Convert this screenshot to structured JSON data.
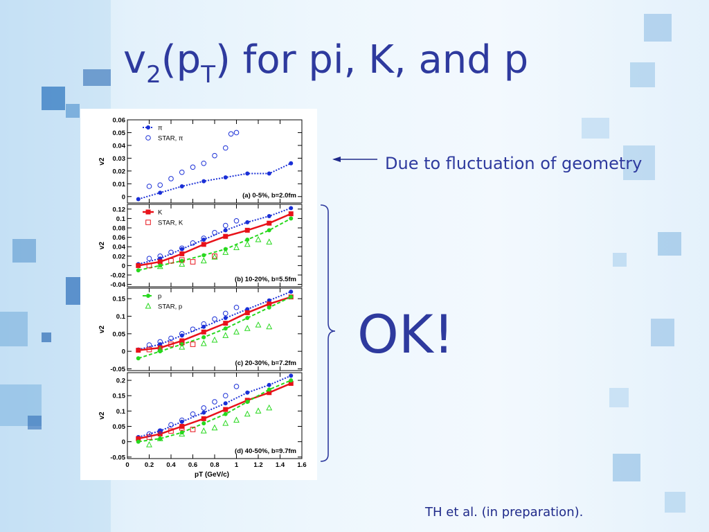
{
  "slide": {
    "title_main": "v",
    "title_sub1": "2",
    "title_mid": "(p",
    "title_sub2": "T",
    "title_end": ") for pi, K, and p",
    "annotation": "Due to fluctuation of geometry",
    "ok_text": "OK!",
    "citation": "TH et al. (in preparation)."
  },
  "colors": {
    "title": "#2e3a9e",
    "pion": "#1a2fd6",
    "kaon": "#e8121a",
    "proton": "#27d81d"
  },
  "chart_data": [
    {
      "type": "scatter",
      "ylabel": "v2",
      "xlim": [
        0,
        1.6
      ],
      "ylim": [
        -0.005,
        0.06
      ],
      "yticks": [
        0,
        0.01,
        0.02,
        0.03,
        0.04,
        0.05,
        0.06
      ],
      "ytick_labels": [
        "0",
        "0.01",
        "0.02",
        "0.03",
        "0.04",
        "0.05",
        "0.06"
      ],
      "annotation": "(a) 0-5%, b=2.0fm",
      "legend": [
        {
          "label": "π",
          "marker": "filled-circle",
          "color": "#1a2fd6"
        },
        {
          "label": "STAR, π",
          "marker": "open-circle",
          "color": "#1a2fd6"
        }
      ],
      "series": [
        {
          "name": "π",
          "style": "dotted-line-filled-circle",
          "color": "#1a2fd6",
          "x": [
            0.1,
            0.3,
            0.5,
            0.7,
            0.9,
            1.1,
            1.3,
            1.5
          ],
          "y": [
            -0.002,
            0.003,
            0.008,
            0.012,
            0.015,
            0.018,
            0.018,
            0.026
          ]
        },
        {
          "name": "STAR, π",
          "style": "open-circle",
          "color": "#1a2fd6",
          "x": [
            0.2,
            0.3,
            0.4,
            0.5,
            0.6,
            0.7,
            0.8,
            0.9,
            0.95,
            1.0
          ],
          "y": [
            0.008,
            0.009,
            0.014,
            0.019,
            0.023,
            0.026,
            0.032,
            0.038,
            0.049,
            0.05
          ]
        }
      ]
    },
    {
      "type": "scatter",
      "ylabel": "v2",
      "xlim": [
        0,
        1.6
      ],
      "ylim": [
        -0.045,
        0.13
      ],
      "yticks": [
        -0.04,
        -0.02,
        0,
        0.02,
        0.04,
        0.06,
        0.08,
        0.1,
        0.12
      ],
      "ytick_labels": [
        "-0.04",
        "-0.02",
        "0",
        "0.02",
        "0.04",
        "0.06",
        "0.08",
        "0.1",
        "0.12"
      ],
      "annotation": "(b) 10-20%, b=5.5fm",
      "legend": [
        {
          "label": "K",
          "marker": "filled-square",
          "color": "#e8121a"
        },
        {
          "label": "STAR, K",
          "marker": "open-square",
          "color": "#e8121a"
        }
      ],
      "series": [
        {
          "name": "π",
          "style": "dotted-line-filled-circle",
          "color": "#1a2fd6",
          "x": [
            0.1,
            0.3,
            0.5,
            0.7,
            0.9,
            1.1,
            1.3,
            1.5
          ],
          "y": [
            0.003,
            0.015,
            0.035,
            0.055,
            0.075,
            0.092,
            0.105,
            0.122
          ]
        },
        {
          "name": "K",
          "style": "solid-line-filled-square",
          "color": "#e8121a",
          "x": [
            0.1,
            0.3,
            0.5,
            0.7,
            0.9,
            1.1,
            1.3,
            1.5
          ],
          "y": [
            0.0,
            0.008,
            0.025,
            0.045,
            0.062,
            0.075,
            0.09,
            0.11
          ]
        },
        {
          "name": "p",
          "style": "dashed-line-filled-circle",
          "color": "#27d81d",
          "x": [
            0.1,
            0.3,
            0.5,
            0.7,
            0.9,
            1.1,
            1.3,
            1.5
          ],
          "y": [
            -0.01,
            0.0,
            0.01,
            0.022,
            0.035,
            0.055,
            0.075,
            0.1
          ]
        },
        {
          "name": "STAR, π",
          "style": "open-circle",
          "color": "#1a2fd6",
          "x": [
            0.2,
            0.3,
            0.4,
            0.5,
            0.6,
            0.7,
            0.8,
            0.9,
            1.0
          ],
          "y": [
            0.015,
            0.02,
            0.028,
            0.037,
            0.048,
            0.058,
            0.07,
            0.085,
            0.095
          ]
        },
        {
          "name": "STAR, K",
          "style": "open-square",
          "color": "#e8121a",
          "x": [
            0.2,
            0.4,
            0.5,
            0.6,
            0.8
          ],
          "y": [
            0.0,
            0.01,
            0.012,
            0.008,
            0.02
          ]
        },
        {
          "name": "STAR, p",
          "style": "open-triangle",
          "color": "#27d81d",
          "x": [
            0.3,
            0.5,
            0.7,
            0.8,
            0.9,
            1.0,
            1.1,
            1.2,
            1.3
          ],
          "y": [
            -0.002,
            0.003,
            0.01,
            0.018,
            0.028,
            0.038,
            0.045,
            0.055,
            0.05
          ]
        }
      ]
    },
    {
      "type": "scatter",
      "ylabel": "v2",
      "xlim": [
        0,
        1.6
      ],
      "ylim": [
        -0.055,
        0.18
      ],
      "yticks": [
        -0.05,
        0,
        0.05,
        0.1,
        0.15
      ],
      "ytick_labels": [
        "-0.05",
        "0",
        "0.05",
        "0.1",
        "0.15"
      ],
      "annotation": "(c) 20-30%, b=7.2fm",
      "legend": [
        {
          "label": "p",
          "marker": "dashed-filled-circle",
          "color": "#27d81d"
        },
        {
          "label": "STAR, p",
          "marker": "open-triangle",
          "color": "#27d81d"
        }
      ],
      "series": [
        {
          "name": "π",
          "style": "dotted-line-filled-circle",
          "color": "#1a2fd6",
          "x": [
            0.1,
            0.3,
            0.5,
            0.7,
            0.9,
            1.1,
            1.3,
            1.5
          ],
          "y": [
            0.005,
            0.02,
            0.045,
            0.07,
            0.095,
            0.12,
            0.145,
            0.17
          ]
        },
        {
          "name": "K",
          "style": "solid-line-filled-square",
          "color": "#e8121a",
          "x": [
            0.1,
            0.3,
            0.5,
            0.7,
            0.9,
            1.1,
            1.3,
            1.5
          ],
          "y": [
            0.003,
            0.01,
            0.03,
            0.055,
            0.08,
            0.11,
            0.135,
            0.155
          ]
        },
        {
          "name": "p",
          "style": "dashed-line-filled-circle",
          "color": "#27d81d",
          "x": [
            0.1,
            0.3,
            0.5,
            0.7,
            0.9,
            1.1,
            1.3,
            1.5
          ],
          "y": [
            -0.02,
            0.0,
            0.02,
            0.04,
            0.065,
            0.095,
            0.125,
            0.155
          ]
        },
        {
          "name": "STAR, π",
          "style": "open-circle",
          "color": "#1a2fd6",
          "x": [
            0.2,
            0.3,
            0.4,
            0.5,
            0.6,
            0.7,
            0.8,
            0.9,
            1.0
          ],
          "y": [
            0.018,
            0.027,
            0.037,
            0.05,
            0.063,
            0.078,
            0.092,
            0.108,
            0.125
          ]
        },
        {
          "name": "STAR, K",
          "style": "open-square",
          "color": "#e8121a",
          "x": [
            0.2,
            0.4,
            0.5,
            0.6
          ],
          "y": [
            0.005,
            0.02,
            0.025,
            0.02
          ]
        },
        {
          "name": "STAR, p",
          "style": "open-triangle",
          "color": "#27d81d",
          "x": [
            0.3,
            0.5,
            0.7,
            0.8,
            0.9,
            1.0,
            1.1,
            1.2,
            1.3
          ],
          "y": [
            0.005,
            0.012,
            0.022,
            0.032,
            0.045,
            0.055,
            0.065,
            0.075,
            0.07
          ]
        }
      ]
    },
    {
      "type": "scatter",
      "ylabel": "v2",
      "xlabel": "pT (GeV/c)",
      "xlim": [
        0,
        1.6
      ],
      "ylim": [
        -0.055,
        0.225
      ],
      "yticks": [
        -0.05,
        0,
        0.05,
        0.1,
        0.15,
        0.2
      ],
      "ytick_labels": [
        "-0.05",
        "0",
        "0.05",
        "0.1",
        "0.15",
        "0.2"
      ],
      "xticks": [
        0,
        0.2,
        0.4,
        0.6,
        0.8,
        1,
        1.2,
        1.4,
        1.6
      ],
      "xtick_labels": [
        "0",
        "0.2",
        "0.4",
        "0.6",
        "0.8",
        "1",
        "1.2",
        "1.4",
        "1.6"
      ],
      "annotation": "(d) 40-50%, b=9.7fm",
      "series": [
        {
          "name": "π",
          "style": "dotted-line-filled-circle",
          "color": "#1a2fd6",
          "x": [
            0.1,
            0.3,
            0.5,
            0.7,
            0.9,
            1.1,
            1.3,
            1.5
          ],
          "y": [
            0.015,
            0.035,
            0.065,
            0.095,
            0.125,
            0.16,
            0.185,
            0.215
          ]
        },
        {
          "name": "K",
          "style": "solid-line-filled-square",
          "color": "#e8121a",
          "x": [
            0.1,
            0.3,
            0.5,
            0.7,
            0.9,
            1.1,
            1.3,
            1.5
          ],
          "y": [
            0.01,
            0.025,
            0.05,
            0.075,
            0.105,
            0.135,
            0.16,
            0.19
          ]
        },
        {
          "name": "p",
          "style": "dashed-line-filled-circle",
          "color": "#27d81d",
          "x": [
            0.1,
            0.3,
            0.5,
            0.7,
            0.9,
            1.1,
            1.3,
            1.5
          ],
          "y": [
            0.0,
            0.01,
            0.03,
            0.06,
            0.09,
            0.13,
            0.17,
            0.2
          ]
        },
        {
          "name": "STAR, π",
          "style": "open-circle",
          "color": "#1a2fd6",
          "x": [
            0.2,
            0.3,
            0.4,
            0.5,
            0.6,
            0.7,
            0.8,
            0.9,
            1.0
          ],
          "y": [
            0.025,
            0.035,
            0.055,
            0.07,
            0.09,
            0.11,
            0.13,
            0.15,
            0.18
          ]
        },
        {
          "name": "STAR, K",
          "style": "open-square",
          "color": "#e8121a",
          "x": [
            0.2,
            0.4,
            0.5,
            0.6
          ],
          "y": [
            0.015,
            0.035,
            0.045,
            0.04
          ]
        },
        {
          "name": "STAR, p",
          "style": "open-triangle",
          "color": "#27d81d",
          "x": [
            0.2,
            0.3,
            0.5,
            0.7,
            0.8,
            0.9,
            1.0,
            1.1,
            1.2,
            1.3
          ],
          "y": [
            -0.01,
            0.01,
            0.025,
            0.035,
            0.045,
            0.06,
            0.07,
            0.09,
            0.1,
            0.11
          ]
        }
      ]
    }
  ]
}
